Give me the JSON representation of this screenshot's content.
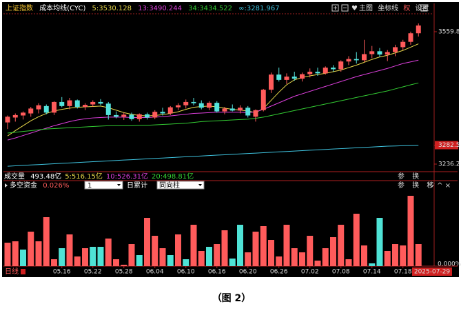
{
  "toolbar": [
    "主图",
    "坐标线",
    "权",
    "设置"
  ],
  "volume_buttons": [
    "参",
    "换"
  ],
  "indicator_buttons": [
    "参",
    "换",
    "移"
  ],
  "period": "日线",
  "accumulate": "日累计",
  "dropdowns": [
    "1",
    "同向柱"
  ],
  "caption": "（图 2）",
  "chart_data": [
    {
      "type": "candlestick",
      "title": "上证指数",
      "indicator": "成本均线(CYC)",
      "up_color": "#ff5b5b",
      "down_color": "#54e3dc",
      "candles": [
        [
          3338,
          3355,
          3322,
          3352
        ],
        [
          3350,
          3360,
          3340,
          3356
        ],
        [
          3355,
          3365,
          3345,
          3362
        ],
        [
          3360,
          3376,
          3352,
          3372
        ],
        [
          3370,
          3385,
          3360,
          3380
        ],
        [
          3378,
          3382,
          3358,
          3362
        ],
        [
          3362,
          3390,
          3356,
          3388
        ],
        [
          3388,
          3400,
          3375,
          3378
        ],
        [
          3378,
          3398,
          3370,
          3392
        ],
        [
          3392,
          3394,
          3372,
          3376
        ],
        [
          3376,
          3385,
          3368,
          3381
        ],
        [
          3382,
          3392,
          3376,
          3388
        ],
        [
          3388,
          3395,
          3380,
          3384
        ],
        [
          3384,
          3388,
          3345,
          3356
        ],
        [
          3356,
          3365,
          3348,
          3352
        ],
        [
          3352,
          3362,
          3344,
          3357
        ],
        [
          3357,
          3362,
          3342,
          3346
        ],
        [
          3346,
          3360,
          3340,
          3358
        ],
        [
          3358,
          3362,
          3345,
          3350
        ],
        [
          3350,
          3368,
          3346,
          3364
        ],
        [
          3364,
          3374,
          3355,
          3360
        ],
        [
          3360,
          3378,
          3356,
          3375
        ],
        [
          3375,
          3385,
          3368,
          3380
        ],
        [
          3380,
          3394,
          3372,
          3388
        ],
        [
          3388,
          3398,
          3380,
          3385
        ],
        [
          3385,
          3392,
          3370,
          3374
        ],
        [
          3374,
          3390,
          3368,
          3386
        ],
        [
          3386,
          3390,
          3362,
          3365
        ],
        [
          3365,
          3376,
          3358,
          3372
        ],
        [
          3372,
          3382,
          3365,
          3367
        ],
        [
          3367,
          3380,
          3360,
          3374
        ],
        [
          3374,
          3378,
          3350,
          3355
        ],
        [
          3352,
          3370,
          3340,
          3368
        ],
        [
          3368,
          3420,
          3365,
          3418
        ],
        [
          3418,
          3460,
          3410,
          3455
        ],
        [
          3455,
          3472,
          3438,
          3442
        ],
        [
          3442,
          3458,
          3432,
          3450
        ],
        [
          3450,
          3462,
          3440,
          3445
        ],
        [
          3445,
          3460,
          3438,
          3456
        ],
        [
          3456,
          3470,
          3448,
          3462
        ],
        [
          3462,
          3472,
          3452,
          3458
        ],
        [
          3458,
          3475,
          3455,
          3472
        ],
        [
          3472,
          3478,
          3462,
          3468
        ],
        [
          3468,
          3490,
          3462,
          3487
        ],
        [
          3487,
          3500,
          3478,
          3493
        ],
        [
          3493,
          3510,
          3482,
          3490
        ],
        [
          3490,
          3540,
          3485,
          3505
        ],
        [
          3505,
          3525,
          3495,
          3512
        ],
        [
          3512,
          3520,
          3498,
          3504
        ],
        [
          3504,
          3515,
          3488,
          3510
        ],
        [
          3510,
          3528,
          3500,
          3522
        ],
        [
          3522,
          3540,
          3515,
          3535
        ],
        [
          3535,
          3560,
          3528,
          3556
        ],
        [
          3556,
          3580,
          3548,
          3575
        ]
      ],
      "series": [
        {
          "name": "5:3530.128",
          "color": "#e8d84a",
          "values": [
            3305,
            3318,
            3330,
            3342,
            3352,
            3360,
            3366,
            3370,
            3373,
            3375,
            3376,
            3377,
            3378,
            3374,
            3368,
            3362,
            3358,
            3355,
            3354,
            3355,
            3357,
            3360,
            3364,
            3370,
            3375,
            3377,
            3378,
            3376,
            3373,
            3370,
            3368,
            3366,
            3362,
            3372,
            3392,
            3412,
            3430,
            3442,
            3448,
            3452,
            3455,
            3458,
            3462,
            3466,
            3472,
            3478,
            3485,
            3492,
            3498,
            3502,
            3508,
            3514,
            3522,
            3530.128
          ]
        },
        {
          "name": "13:3490.244",
          "color": "#e040e0",
          "values": [
            3295,
            3300,
            3306,
            3312,
            3318,
            3324,
            3330,
            3335,
            3340,
            3344,
            3347,
            3349,
            3350,
            3351,
            3351,
            3351,
            3350,
            3350,
            3350,
            3351,
            3352,
            3354,
            3356,
            3358,
            3360,
            3361,
            3362,
            3363,
            3363,
            3363,
            3363,
            3362,
            3364,
            3370,
            3378,
            3386,
            3394,
            3402,
            3408,
            3414,
            3420,
            3426,
            3432,
            3438,
            3444,
            3450,
            3455,
            3460,
            3465,
            3470,
            3476,
            3482,
            3486,
            3490.244
          ]
        },
        {
          "name": "34:3434.522",
          "color": "#33cc33",
          "values": [
            3312,
            3314,
            3316,
            3318,
            3320,
            3322,
            3323,
            3324,
            3325,
            3326,
            3327,
            3328,
            3329,
            3330,
            3330,
            3330,
            3330,
            3331,
            3331,
            3332,
            3333,
            3334,
            3335,
            3336,
            3338,
            3340,
            3341,
            3342,
            3343,
            3344,
            3345,
            3346,
            3348,
            3351,
            3355,
            3359,
            3363,
            3367,
            3371,
            3375,
            3379,
            3383,
            3387,
            3391,
            3395,
            3399,
            3403,
            3407,
            3411,
            3415,
            3420,
            3425,
            3430,
            3434.522
          ]
        },
        {
          "name": "∞:3281.967",
          "color": "#3fc4e0",
          "values": [
            3231,
            3232,
            3233,
            3234,
            3235,
            3236,
            3237,
            3238,
            3239,
            3240,
            3241,
            3242,
            3243,
            3244,
            3245,
            3246,
            3247,
            3248,
            3249,
            3250,
            3251,
            3252,
            3253,
            3254,
            3255,
            3256,
            3257,
            3258,
            3259,
            3260,
            3261,
            3262,
            3263,
            3264,
            3265,
            3266,
            3267,
            3268,
            3269,
            3270,
            3271,
            3272,
            3273,
            3274,
            3275,
            3276,
            3277,
            3278,
            3279,
            3280,
            3280.5,
            3281,
            3281.5,
            3281.967
          ]
        }
      ],
      "ylim": [
        3222.7,
        3603.6
      ],
      "yticks": [
        3559.8,
        3282.5,
        3236.2
      ],
      "highlighted_ytick": 1
    },
    {
      "type": "bar",
      "title": "多空资金",
      "value_text": "0.026%",
      "volume": {
        "label": "成交量",
        "items": [
          {
            "text": "493.48亿",
            "color": "#ffffff"
          },
          {
            "text": "5:516.15亿",
            "color": "#e8d84a"
          },
          {
            "text": "10:526.31亿",
            "color": "#e040e0"
          },
          {
            "text": "20:498.81亿",
            "color": "#33cc33"
          }
        ]
      },
      "categories": [
        null,
        null,
        null,
        null,
        null,
        null,
        null,
        "05.16",
        null,
        null,
        null,
        "05.22",
        null,
        null,
        null,
        "05.28",
        null,
        null,
        null,
        "06.04",
        null,
        null,
        null,
        "06.10",
        null,
        null,
        null,
        "06.16",
        null,
        null,
        null,
        "06.20",
        null,
        null,
        null,
        "06.26",
        null,
        null,
        null,
        "07.02",
        null,
        null,
        null,
        "07.08",
        null,
        null,
        null,
        "07.14",
        null,
        null,
        null,
        "07.18",
        null,
        "2025-07-29"
      ],
      "values": [
        34,
        36,
        24,
        50,
        36,
        71,
        10,
        26,
        46,
        14,
        26,
        28,
        28,
        40,
        10,
        2,
        32,
        16,
        70,
        44,
        26,
        16,
        46,
        10,
        60,
        22,
        28,
        32,
        52,
        11,
        60,
        20,
        50,
        58,
        38,
        14,
        60,
        26,
        20,
        44,
        8,
        26,
        42,
        60,
        10,
        76,
        30,
        4,
        70,
        22,
        32,
        30,
        102,
        32
      ],
      "colors": [
        "#ff5b5b",
        "#ff5b5b",
        "#4fe3d6",
        "#ff5b5b",
        "#ff5b5b",
        "#ff5b5b",
        "#ff5b5b",
        "#4fe3d6",
        "#ff5b5b",
        "#ff5b5b",
        "#ff5b5b",
        "#4fe3d6",
        "#4fe3d6",
        "#ff5b5b",
        "#ff5b5b",
        "#ff5b5b",
        "#ff5b5b",
        "#4fe3d6",
        "#ff5b5b",
        "#ff5b5b",
        "#ff5b5b",
        "#4fe3d6",
        "#ff5b5b",
        "#4fe3d6",
        "#ff5b5b",
        "#ff5b5b",
        "#4fe3d6",
        "#ff5b5b",
        "#ff5b5b",
        "#4fe3d6",
        "#4fe3d6",
        "#ff5b5b",
        "#ff5b5b",
        "#ff5b5b",
        "#ff5b5b",
        "#ff5b5b",
        "#ff5b5b",
        "#ff5b5b",
        "#ff5b5b",
        "#ff5b5b",
        "#ff5b5b",
        "#ff5b5b",
        "#ff5b5b",
        "#ff5b5b",
        "#ff5b5b",
        "#ff5b5b",
        "#ff5b5b",
        "#4fe3d6",
        "#4fe3d6",
        "#ff5b5b",
        "#ff5b5b",
        "#ff5b5b",
        "#ff5b5b",
        "#ff5b5b"
      ],
      "ylim": [
        0,
        110
      ],
      "yticks": [
        {
          "value": 0,
          "label": "0.000%"
        }
      ]
    }
  ]
}
